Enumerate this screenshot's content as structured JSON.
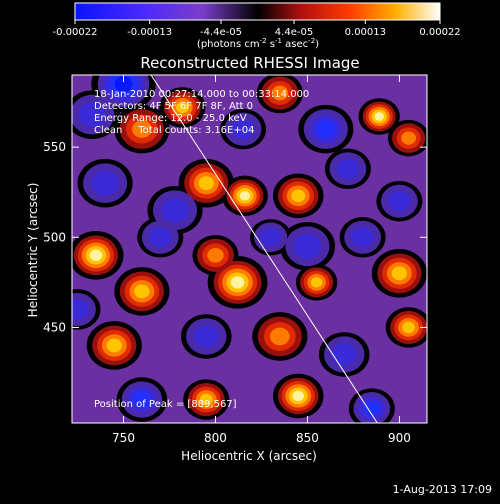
{
  "chart_data": {
    "type": "heatmap",
    "title": "Reconstructed RHESSI Image",
    "xlabel": "Heliocentric X (arcsec)",
    "ylabel": "Heliocentric Y (arcsec)",
    "xlim": [
      722,
      915
    ],
    "ylim": [
      397,
      590
    ],
    "x_ticks": [
      750,
      800,
      850,
      900
    ],
    "y_ticks": [
      450,
      500,
      550
    ],
    "colorbar": {
      "label_main": "(photons cm",
      "sup1": "-2",
      "mid1": " s",
      "sup2": "-1",
      "mid2": " asec",
      "sup3": "-2",
      "close": ")",
      "range": [
        -0.00022,
        0.00022
      ],
      "ticks": [
        {
          "label": "-0.00022",
          "value": -0.00022
        },
        {
          "label": "-0.00013",
          "value": -0.00013
        },
        {
          "label": "-4.4e-05",
          "value": -4.4e-05
        },
        {
          "label": "4.4e-05",
          "value": 4.4e-05
        },
        {
          "label": "0.00013",
          "value": 0.00013
        },
        {
          "label": "0.00022",
          "value": 0.00022
        }
      ]
    },
    "annotations": [
      "18-Jan-2010 00:27:14.000 to 00:33:14.000",
      "Detectors: 4F 5F 6F 7F 8F, Att 0",
      "Energy Range: 12.0 - 25.0 keV",
      "Clean     Total counts: 3.16E+04"
    ],
    "peak_label": "Position of Peak = [889,567]",
    "limb_line": [
      [
        765,
        590
      ],
      [
        888,
        397
      ]
    ],
    "sources": [
      {
        "x": 750,
        "y": 585,
        "a": -0.9,
        "r": 14
      },
      {
        "x": 733,
        "y": 568,
        "a": -0.6,
        "r": 12
      },
      {
        "x": 760,
        "y": 560,
        "a": 0.6,
        "r": 12
      },
      {
        "x": 782,
        "y": 572,
        "a": 0.7,
        "r": 10
      },
      {
        "x": 795,
        "y": 530,
        "a": 0.7,
        "r": 12
      },
      {
        "x": 816,
        "y": 523,
        "a": 1.0,
        "r": 10
      },
      {
        "x": 778,
        "y": 515,
        "a": -0.5,
        "r": 12
      },
      {
        "x": 845,
        "y": 523,
        "a": 0.85,
        "r": 11
      },
      {
        "x": 860,
        "y": 560,
        "a": -0.7,
        "r": 12
      },
      {
        "x": 889,
        "y": 567,
        "a": 0.9,
        "r": 9
      },
      {
        "x": 905,
        "y": 555,
        "a": 0.6,
        "r": 9
      },
      {
        "x": 872,
        "y": 538,
        "a": -0.5,
        "r": 10
      },
      {
        "x": 900,
        "y": 520,
        "a": -0.6,
        "r": 10
      },
      {
        "x": 740,
        "y": 530,
        "a": -0.6,
        "r": 12
      },
      {
        "x": 735,
        "y": 490,
        "a": 0.9,
        "r": 12
      },
      {
        "x": 760,
        "y": 470,
        "a": 0.85,
        "r": 12
      },
      {
        "x": 770,
        "y": 500,
        "a": -0.4,
        "r": 10
      },
      {
        "x": 812,
        "y": 475,
        "a": 0.95,
        "r": 13
      },
      {
        "x": 800,
        "y": 490,
        "a": 0.5,
        "r": 10
      },
      {
        "x": 850,
        "y": 495,
        "a": -0.6,
        "r": 12
      },
      {
        "x": 855,
        "y": 475,
        "a": 0.8,
        "r": 9
      },
      {
        "x": 900,
        "y": 480,
        "a": 0.75,
        "r": 12
      },
      {
        "x": 880,
        "y": 500,
        "a": -0.5,
        "r": 10
      },
      {
        "x": 830,
        "y": 500,
        "a": -0.4,
        "r": 9
      },
      {
        "x": 745,
        "y": 440,
        "a": 0.75,
        "r": 12
      },
      {
        "x": 725,
        "y": 460,
        "a": -0.6,
        "r": 10
      },
      {
        "x": 795,
        "y": 445,
        "a": -0.6,
        "r": 11
      },
      {
        "x": 835,
        "y": 445,
        "a": 0.6,
        "r": 12
      },
      {
        "x": 870,
        "y": 435,
        "a": -0.6,
        "r": 11
      },
      {
        "x": 905,
        "y": 450,
        "a": 0.7,
        "r": 10
      },
      {
        "x": 760,
        "y": 410,
        "a": -0.7,
        "r": 11
      },
      {
        "x": 795,
        "y": 410,
        "a": 0.85,
        "r": 10
      },
      {
        "x": 845,
        "y": 412,
        "a": 0.9,
        "r": 11
      },
      {
        "x": 885,
        "y": 405,
        "a": -0.8,
        "r": 10
      },
      {
        "x": 815,
        "y": 560,
        "a": -0.4,
        "r": 10
      },
      {
        "x": 835,
        "y": 580,
        "a": 0.5,
        "r": 10
      }
    ]
  },
  "footer": {
    "date_stamp": "1-Aug-2013 17:09"
  }
}
